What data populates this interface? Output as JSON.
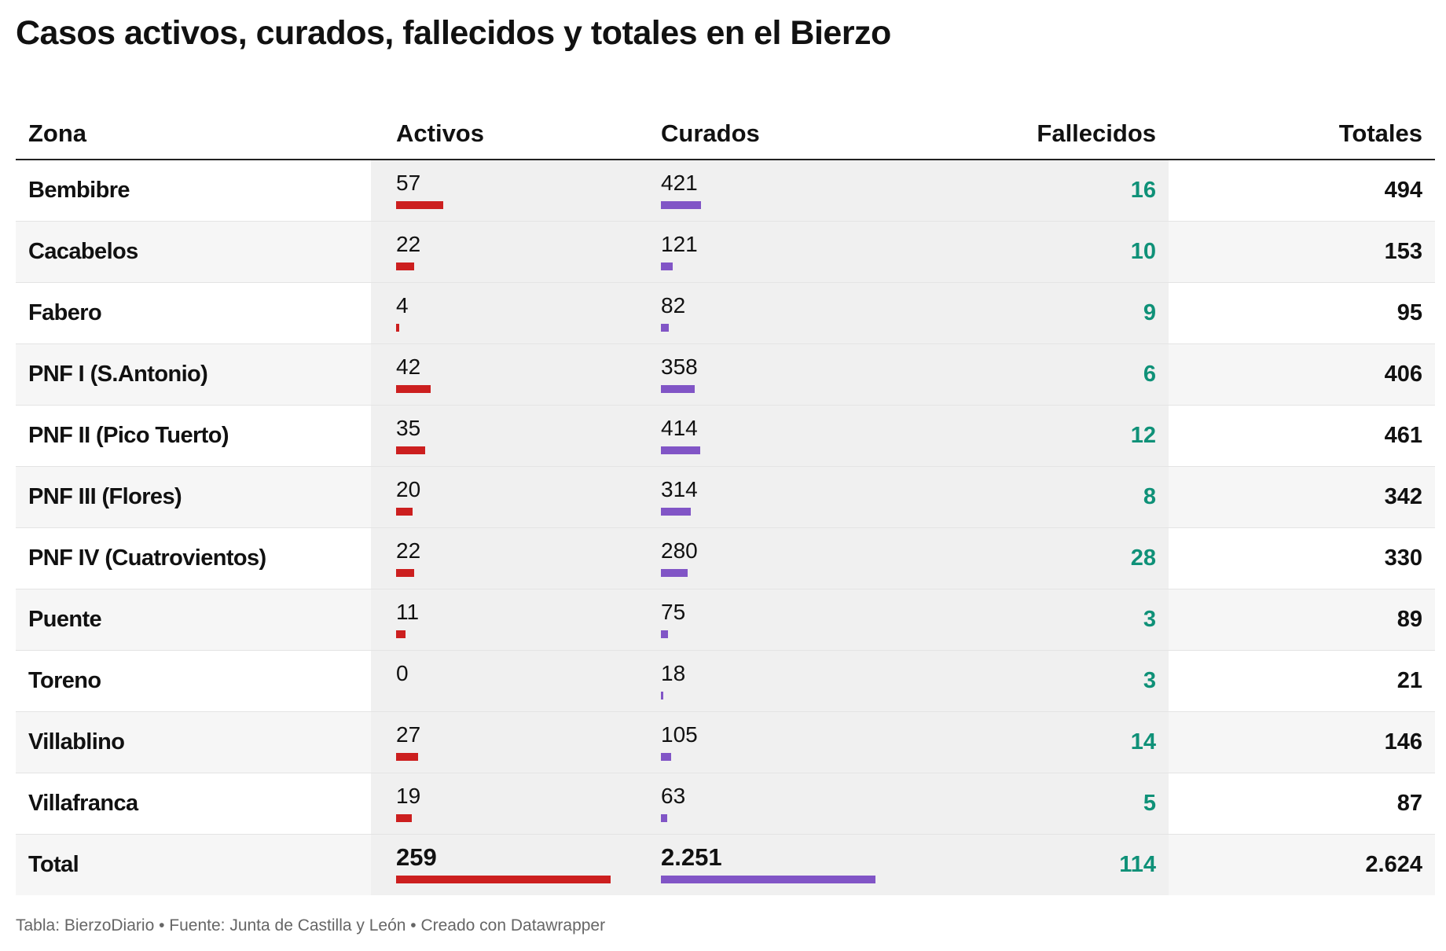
{
  "title": "Casos activos, curados, fallecidos y totales en el Bierzo",
  "footer": "Tabla: BierzoDiario • Fuente: Junta de Castilla y León • Creado con Datawrapper",
  "colors": {
    "activos_bar": "#cc1f1f",
    "curados_bar": "#8155c6",
    "fallecidos_text": "#0f9178"
  },
  "chart_data": {
    "type": "table",
    "columns": [
      "Zona",
      "Activos",
      "Curados",
      "Fallecidos",
      "Totales"
    ],
    "bar_max": {
      "activos": 259,
      "curados": 2251
    },
    "rows": [
      {
        "zona": "Bembibre",
        "activos": 57,
        "curados": 421,
        "fallecidos": 16,
        "totales": 494
      },
      {
        "zona": "Cacabelos",
        "activos": 22,
        "curados": 121,
        "fallecidos": 10,
        "totales": 153
      },
      {
        "zona": "Fabero",
        "activos": 4,
        "curados": 82,
        "fallecidos": 9,
        "totales": 95
      },
      {
        "zona": "PNF I (S.Antonio)",
        "activos": 42,
        "curados": 358,
        "fallecidos": 6,
        "totales": 406
      },
      {
        "zona": "PNF II (Pico Tuerto)",
        "activos": 35,
        "curados": 414,
        "fallecidos": 12,
        "totales": 461
      },
      {
        "zona": "PNF III (Flores)",
        "activos": 20,
        "curados": 314,
        "fallecidos": 8,
        "totales": 342
      },
      {
        "zona": "PNF IV (Cuatrovientos)",
        "activos": 22,
        "curados": 280,
        "fallecidos": 28,
        "totales": 330
      },
      {
        "zona": "Puente",
        "activos": 11,
        "curados": 75,
        "fallecidos": 3,
        "totales": 89
      },
      {
        "zona": "Toreno",
        "activos": 0,
        "curados": 18,
        "fallecidos": 3,
        "totales": 21
      },
      {
        "zona": "Villablino",
        "activos": 27,
        "curados": 105,
        "fallecidos": 14,
        "totales": 146
      },
      {
        "zona": "Villafranca",
        "activos": 19,
        "curados": 63,
        "fallecidos": 5,
        "totales": 87
      }
    ],
    "total": {
      "zona": "Total",
      "activos": 259,
      "curados": 2251,
      "fallecidos": 114,
      "totales": 2624
    }
  }
}
